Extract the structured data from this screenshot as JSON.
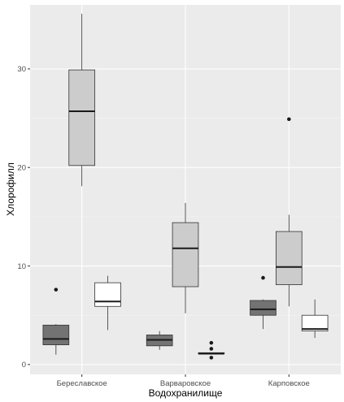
{
  "chart_data": {
    "type": "boxplot",
    "title": "",
    "xlabel": "Водохранилище",
    "ylabel": "Хлорофилл",
    "categories": [
      "Береславское",
      "Варваровское",
      "Карповское"
    ],
    "ylim": [
      -1,
      36.5
    ],
    "yticks": [
      0,
      10,
      20,
      30
    ],
    "ytick_labels": [
      "0",
      "10",
      "20",
      "30"
    ],
    "grid": true,
    "legend": "none",
    "groups": [
      {
        "category": "Береславское",
        "boxes": [
          {
            "fill": "#737373",
            "min": 1.0,
            "q1": 2.0,
            "median": 2.6,
            "q3": 4.0,
            "max": 4.1,
            "outliers": [
              7.6
            ]
          },
          {
            "fill": "#cccccc",
            "min": 18.1,
            "q1": 20.2,
            "median": 25.7,
            "q3": 29.9,
            "max": 35.6,
            "outliers": []
          },
          {
            "fill": "#ffffff",
            "min": 3.5,
            "q1": 5.9,
            "median": 6.4,
            "q3": 8.3,
            "max": 9.0,
            "outliers": []
          }
        ]
      },
      {
        "category": "Варваровское",
        "boxes": [
          {
            "fill": "#737373",
            "min": 1.5,
            "q1": 1.9,
            "median": 2.5,
            "q3": 3.0,
            "max": 3.4,
            "outliers": []
          },
          {
            "fill": "#cccccc",
            "min": 5.2,
            "q1": 7.9,
            "median": 11.8,
            "q3": 14.4,
            "max": 16.4,
            "outliers": []
          },
          {
            "fill": "#ffffff",
            "min": 1.1,
            "q1": 1.1,
            "median": 1.1,
            "q3": 1.2,
            "max": 1.2,
            "outliers": [
              2.2,
              1.6,
              0.7
            ]
          }
        ]
      },
      {
        "category": "Карповское",
        "boxes": [
          {
            "fill": "#737373",
            "min": 3.6,
            "q1": 5.0,
            "median": 5.6,
            "q3": 6.5,
            "max": 6.6,
            "outliers": [
              8.8
            ]
          },
          {
            "fill": "#cccccc",
            "min": 5.9,
            "q1": 8.1,
            "median": 9.9,
            "q3": 13.5,
            "max": 15.2,
            "outliers": [
              24.9
            ]
          },
          {
            "fill": "#ffffff",
            "min": 2.7,
            "q1": 3.4,
            "median": 3.6,
            "q3": 5.0,
            "max": 6.6,
            "outliers": []
          }
        ]
      }
    ],
    "colors": {
      "panel": "#ebebeb",
      "grid_major": "#ffffff",
      "box_stroke": "#333333",
      "median": "#1a1a1a",
      "outlier": "#1a1a1a"
    }
  }
}
